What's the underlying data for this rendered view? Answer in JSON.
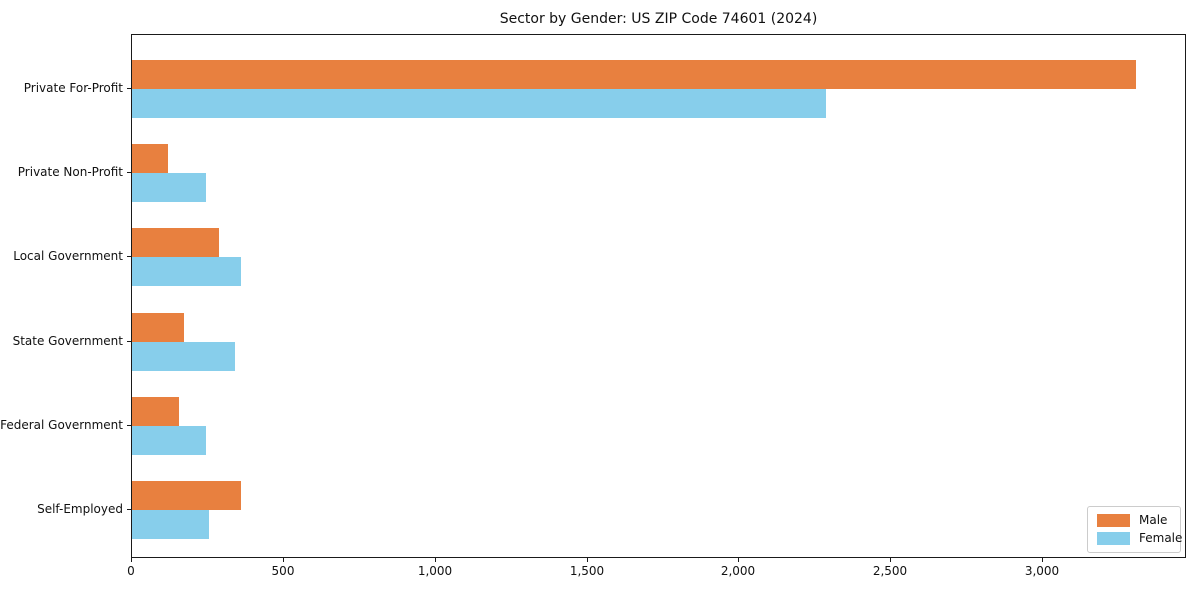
{
  "title": "Sector by Gender: US ZIP Code 74601 (2024)",
  "chart_data": {
    "type": "bar",
    "orientation": "horizontal",
    "title": "Sector by Gender: US ZIP Code 74601 (2024)",
    "categories": [
      "Private For-Profit",
      "Private Non-Profit",
      "Local Government",
      "State Government",
      "Federal Government",
      "Self-Employed"
    ],
    "series": [
      {
        "name": "Male",
        "color": "#e8803f",
        "values": [
          3305,
          120,
          285,
          170,
          155,
          360
        ]
      },
      {
        "name": "Female",
        "color": "#87ceeb",
        "values": [
          2285,
          245,
          360,
          340,
          245,
          255
        ]
      }
    ],
    "xlabel": "",
    "ylabel": "",
    "xlim": [
      0,
      3474
    ],
    "x_ticks": [
      0,
      500,
      1000,
      1500,
      2000,
      2500,
      3000
    ],
    "x_tick_labels": [
      "0",
      "500",
      "1,000",
      "1,500",
      "2,000",
      "2,500",
      "3,000"
    ],
    "grid": false,
    "legend": {
      "position": "lower right",
      "entries": [
        {
          "label": "Male",
          "color": "#e8803f"
        },
        {
          "label": "Female",
          "color": "#87ceeb"
        }
      ]
    }
  }
}
